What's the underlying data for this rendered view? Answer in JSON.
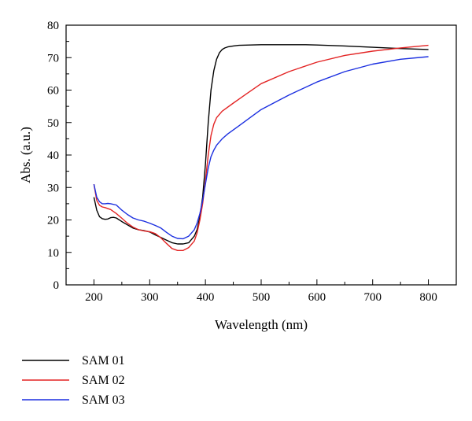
{
  "chart_data": {
    "type": "line",
    "xlabel": "Wavelength (nm)",
    "ylabel": "Abs. (a.u.)",
    "xlim": [
      150,
      850
    ],
    "ylim": [
      0,
      80
    ],
    "x_ticks": [
      "200",
      "300",
      "400",
      "500",
      "600",
      "700",
      "800"
    ],
    "y_ticks": [
      "0",
      "10",
      "20",
      "30",
      "40",
      "50",
      "60",
      "70",
      "80"
    ],
    "grid": false,
    "legend_position": "bottom-left, below the plot",
    "series": [
      {
        "name": "SAM 01",
        "color": "#000000",
        "x": [
          200,
          205,
          210,
          215,
          220,
          225,
          230,
          235,
          240,
          250,
          260,
          270,
          280,
          290,
          300,
          310,
          320,
          330,
          340,
          350,
          360,
          370,
          380,
          385,
          390,
          395,
          400,
          405,
          410,
          415,
          420,
          425,
          430,
          435,
          440,
          450,
          460,
          480,
          500,
          550,
          580,
          600,
          650,
          700,
          750,
          800
        ],
        "y": [
          27,
          23,
          21,
          20.4,
          20.2,
          20.3,
          20.7,
          20.8,
          20.6,
          19.5,
          18.5,
          17.5,
          17,
          16.7,
          16.3,
          15.4,
          14.6,
          13.8,
          13,
          12.6,
          12.6,
          13,
          15,
          17,
          21,
          27,
          37,
          50,
          60,
          66,
          69.5,
          71.5,
          72.5,
          73,
          73.3,
          73.6,
          73.8,
          73.9,
          74,
          74,
          74,
          73.9,
          73.6,
          73.2,
          72.8,
          72.5
        ]
      },
      {
        "name": "SAM 02",
        "color": "#e32424",
        "x": [
          200,
          205,
          210,
          215,
          220,
          230,
          240,
          250,
          260,
          270,
          280,
          290,
          300,
          310,
          320,
          330,
          340,
          350,
          360,
          370,
          380,
          385,
          390,
          395,
          400,
          405,
          410,
          415,
          420,
          430,
          450,
          475,
          500,
          550,
          600,
          650,
          700,
          750,
          800
        ],
        "y": [
          31,
          26,
          24.5,
          24,
          23.8,
          23.2,
          22,
          20.5,
          19,
          17.8,
          17,
          16.6,
          16.4,
          15.8,
          14.5,
          12.8,
          11.2,
          10.6,
          10.6,
          11.5,
          13.5,
          16,
          20,
          25,
          32,
          40,
          46,
          49.5,
          51.5,
          53.5,
          56,
          59,
          62,
          65.7,
          68.6,
          70.7,
          72,
          73,
          73.8
        ]
      },
      {
        "name": "SAM 03",
        "color": "#1b2fe0",
        "x": [
          200,
          205,
          210,
          215,
          220,
          225,
          230,
          240,
          250,
          260,
          270,
          280,
          290,
          300,
          310,
          320,
          330,
          340,
          350,
          360,
          370,
          380,
          385,
          390,
          395,
          400,
          405,
          410,
          415,
          420,
          430,
          440,
          460,
          480,
          500,
          550,
          600,
          650,
          700,
          750,
          800
        ],
        "y": [
          31,
          27,
          25.6,
          25,
          25,
          25.1,
          25,
          24.6,
          23,
          21.7,
          20.6,
          20,
          19.6,
          19,
          18.3,
          17.5,
          16.2,
          15,
          14.3,
          14.2,
          15,
          17,
          19,
          22,
          26,
          31,
          36,
          39.5,
          41.5,
          43,
          45,
          46.5,
          49,
          51.5,
          54,
          58.5,
          62.5,
          65.7,
          68,
          69.5,
          70.3
        ]
      }
    ]
  }
}
